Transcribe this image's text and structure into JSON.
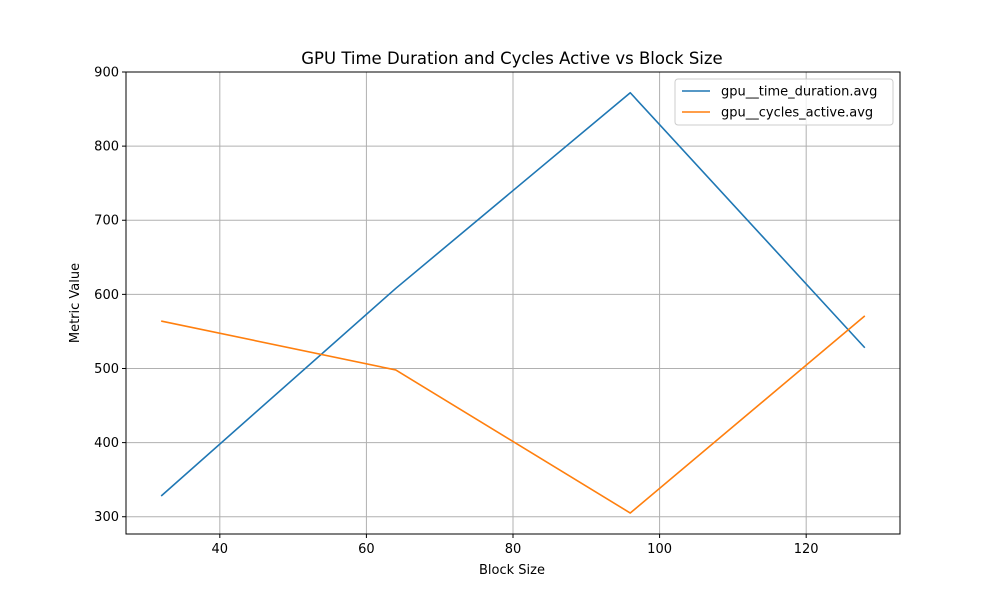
{
  "chart_data": {
    "type": "line",
    "title": "GPU Time Duration and Cycles Active vs Block Size",
    "xlabel": "Block Size",
    "ylabel": "Metric Value",
    "x": [
      32,
      64,
      96,
      128
    ],
    "xlim": [
      27.2,
      132.8
    ],
    "ylim": [
      276.7,
      900
    ],
    "xticks": [
      40,
      60,
      80,
      100,
      120
    ],
    "yticks": [
      300,
      400,
      500,
      600,
      700,
      800,
      900
    ],
    "grid": true,
    "legend_position": "top-right",
    "series": [
      {
        "name": "gpu__time_duration.avg",
        "color": "#1f77b4",
        "values": [
          328,
          608,
          872,
          528
        ]
      },
      {
        "name": "gpu__cycles_active.avg",
        "color": "#ff7f0e",
        "values": [
          564,
          498,
          305,
          571
        ]
      }
    ]
  }
}
